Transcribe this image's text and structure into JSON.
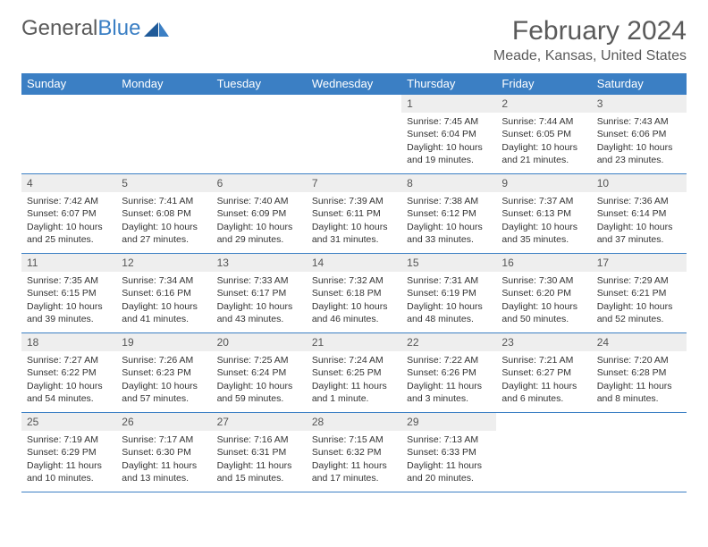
{
  "logo": {
    "text1": "General",
    "text2": "Blue"
  },
  "title": "February 2024",
  "location": "Meade, Kansas, United States",
  "colors": {
    "header_blue": "#3b7fc4",
    "gray_bg": "#eeeeee",
    "text_dark": "#333333",
    "text_muted": "#5a5a5a",
    "white": "#ffffff"
  },
  "day_headers": [
    "Sunday",
    "Monday",
    "Tuesday",
    "Wednesday",
    "Thursday",
    "Friday",
    "Saturday"
  ],
  "weeks": [
    [
      {
        "num": "",
        "sunrise": "",
        "sunset": "",
        "daylight": ""
      },
      {
        "num": "",
        "sunrise": "",
        "sunset": "",
        "daylight": ""
      },
      {
        "num": "",
        "sunrise": "",
        "sunset": "",
        "daylight": ""
      },
      {
        "num": "",
        "sunrise": "",
        "sunset": "",
        "daylight": ""
      },
      {
        "num": "1",
        "sunrise": "Sunrise: 7:45 AM",
        "sunset": "Sunset: 6:04 PM",
        "daylight": "Daylight: 10 hours and 19 minutes."
      },
      {
        "num": "2",
        "sunrise": "Sunrise: 7:44 AM",
        "sunset": "Sunset: 6:05 PM",
        "daylight": "Daylight: 10 hours and 21 minutes."
      },
      {
        "num": "3",
        "sunrise": "Sunrise: 7:43 AM",
        "sunset": "Sunset: 6:06 PM",
        "daylight": "Daylight: 10 hours and 23 minutes."
      }
    ],
    [
      {
        "num": "4",
        "sunrise": "Sunrise: 7:42 AM",
        "sunset": "Sunset: 6:07 PM",
        "daylight": "Daylight: 10 hours and 25 minutes."
      },
      {
        "num": "5",
        "sunrise": "Sunrise: 7:41 AM",
        "sunset": "Sunset: 6:08 PM",
        "daylight": "Daylight: 10 hours and 27 minutes."
      },
      {
        "num": "6",
        "sunrise": "Sunrise: 7:40 AM",
        "sunset": "Sunset: 6:09 PM",
        "daylight": "Daylight: 10 hours and 29 minutes."
      },
      {
        "num": "7",
        "sunrise": "Sunrise: 7:39 AM",
        "sunset": "Sunset: 6:11 PM",
        "daylight": "Daylight: 10 hours and 31 minutes."
      },
      {
        "num": "8",
        "sunrise": "Sunrise: 7:38 AM",
        "sunset": "Sunset: 6:12 PM",
        "daylight": "Daylight: 10 hours and 33 minutes."
      },
      {
        "num": "9",
        "sunrise": "Sunrise: 7:37 AM",
        "sunset": "Sunset: 6:13 PM",
        "daylight": "Daylight: 10 hours and 35 minutes."
      },
      {
        "num": "10",
        "sunrise": "Sunrise: 7:36 AM",
        "sunset": "Sunset: 6:14 PM",
        "daylight": "Daylight: 10 hours and 37 minutes."
      }
    ],
    [
      {
        "num": "11",
        "sunrise": "Sunrise: 7:35 AM",
        "sunset": "Sunset: 6:15 PM",
        "daylight": "Daylight: 10 hours and 39 minutes."
      },
      {
        "num": "12",
        "sunrise": "Sunrise: 7:34 AM",
        "sunset": "Sunset: 6:16 PM",
        "daylight": "Daylight: 10 hours and 41 minutes."
      },
      {
        "num": "13",
        "sunrise": "Sunrise: 7:33 AM",
        "sunset": "Sunset: 6:17 PM",
        "daylight": "Daylight: 10 hours and 43 minutes."
      },
      {
        "num": "14",
        "sunrise": "Sunrise: 7:32 AM",
        "sunset": "Sunset: 6:18 PM",
        "daylight": "Daylight: 10 hours and 46 minutes."
      },
      {
        "num": "15",
        "sunrise": "Sunrise: 7:31 AM",
        "sunset": "Sunset: 6:19 PM",
        "daylight": "Daylight: 10 hours and 48 minutes."
      },
      {
        "num": "16",
        "sunrise": "Sunrise: 7:30 AM",
        "sunset": "Sunset: 6:20 PM",
        "daylight": "Daylight: 10 hours and 50 minutes."
      },
      {
        "num": "17",
        "sunrise": "Sunrise: 7:29 AM",
        "sunset": "Sunset: 6:21 PM",
        "daylight": "Daylight: 10 hours and 52 minutes."
      }
    ],
    [
      {
        "num": "18",
        "sunrise": "Sunrise: 7:27 AM",
        "sunset": "Sunset: 6:22 PM",
        "daylight": "Daylight: 10 hours and 54 minutes."
      },
      {
        "num": "19",
        "sunrise": "Sunrise: 7:26 AM",
        "sunset": "Sunset: 6:23 PM",
        "daylight": "Daylight: 10 hours and 57 minutes."
      },
      {
        "num": "20",
        "sunrise": "Sunrise: 7:25 AM",
        "sunset": "Sunset: 6:24 PM",
        "daylight": "Daylight: 10 hours and 59 minutes."
      },
      {
        "num": "21",
        "sunrise": "Sunrise: 7:24 AM",
        "sunset": "Sunset: 6:25 PM",
        "daylight": "Daylight: 11 hours and 1 minute."
      },
      {
        "num": "22",
        "sunrise": "Sunrise: 7:22 AM",
        "sunset": "Sunset: 6:26 PM",
        "daylight": "Daylight: 11 hours and 3 minutes."
      },
      {
        "num": "23",
        "sunrise": "Sunrise: 7:21 AM",
        "sunset": "Sunset: 6:27 PM",
        "daylight": "Daylight: 11 hours and 6 minutes."
      },
      {
        "num": "24",
        "sunrise": "Sunrise: 7:20 AM",
        "sunset": "Sunset: 6:28 PM",
        "daylight": "Daylight: 11 hours and 8 minutes."
      }
    ],
    [
      {
        "num": "25",
        "sunrise": "Sunrise: 7:19 AM",
        "sunset": "Sunset: 6:29 PM",
        "daylight": "Daylight: 11 hours and 10 minutes."
      },
      {
        "num": "26",
        "sunrise": "Sunrise: 7:17 AM",
        "sunset": "Sunset: 6:30 PM",
        "daylight": "Daylight: 11 hours and 13 minutes."
      },
      {
        "num": "27",
        "sunrise": "Sunrise: 7:16 AM",
        "sunset": "Sunset: 6:31 PM",
        "daylight": "Daylight: 11 hours and 15 minutes."
      },
      {
        "num": "28",
        "sunrise": "Sunrise: 7:15 AM",
        "sunset": "Sunset: 6:32 PM",
        "daylight": "Daylight: 11 hours and 17 minutes."
      },
      {
        "num": "29",
        "sunrise": "Sunrise: 7:13 AM",
        "sunset": "Sunset: 6:33 PM",
        "daylight": "Daylight: 11 hours and 20 minutes."
      },
      {
        "num": "",
        "sunrise": "",
        "sunset": "",
        "daylight": ""
      },
      {
        "num": "",
        "sunrise": "",
        "sunset": "",
        "daylight": ""
      }
    ]
  ]
}
